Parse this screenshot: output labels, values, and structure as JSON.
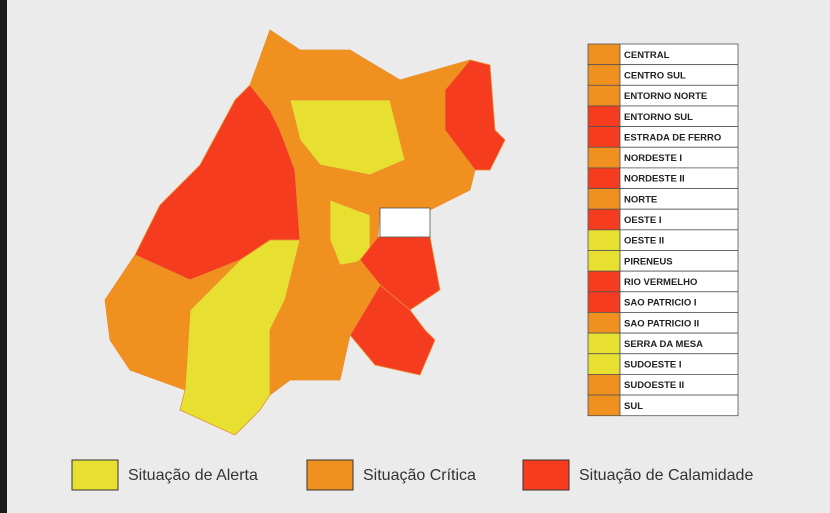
{
  "regions": [
    {
      "name": "CENTRAL",
      "color": "#f0901e"
    },
    {
      "name": "CENTRO SUL",
      "color": "#f0901e"
    },
    {
      "name": "ENTORNO NORTE",
      "color": "#f0901e"
    },
    {
      "name": "ENTORNO SUL",
      "color": "#f53c1e"
    },
    {
      "name": "ESTRADA DE FERRO",
      "color": "#f53c1e"
    },
    {
      "name": "NORDESTE I",
      "color": "#f0901e"
    },
    {
      "name": "NORDESTE II",
      "color": "#f53c1e"
    },
    {
      "name": "NORTE",
      "color": "#f0901e"
    },
    {
      "name": "OESTE I",
      "color": "#f53c1e"
    },
    {
      "name": "OESTE II",
      "color": "#e8e030"
    },
    {
      "name": "PIRENEUS",
      "color": "#e8e030"
    },
    {
      "name": "RIO VERMELHO",
      "color": "#f53c1e"
    },
    {
      "name": "SAO PATRICIO I",
      "color": "#f53c1e"
    },
    {
      "name": "SAO PATRICIO II",
      "color": "#f0901e"
    },
    {
      "name": "SERRA DA MESA",
      "color": "#e8e030"
    },
    {
      "name": "SUDOESTE I",
      "color": "#e8e030"
    },
    {
      "name": "SUDOESTE II",
      "color": "#f0901e"
    },
    {
      "name": "SUL",
      "color": "#f0901e"
    }
  ],
  "legend": [
    {
      "label": "Situação de Alerta",
      "color": "#e8e030"
    },
    {
      "label": "Situação Crítica",
      "color": "#f0901e"
    },
    {
      "label": "Situação de Calamidade",
      "color": "#f53c1e"
    }
  ]
}
